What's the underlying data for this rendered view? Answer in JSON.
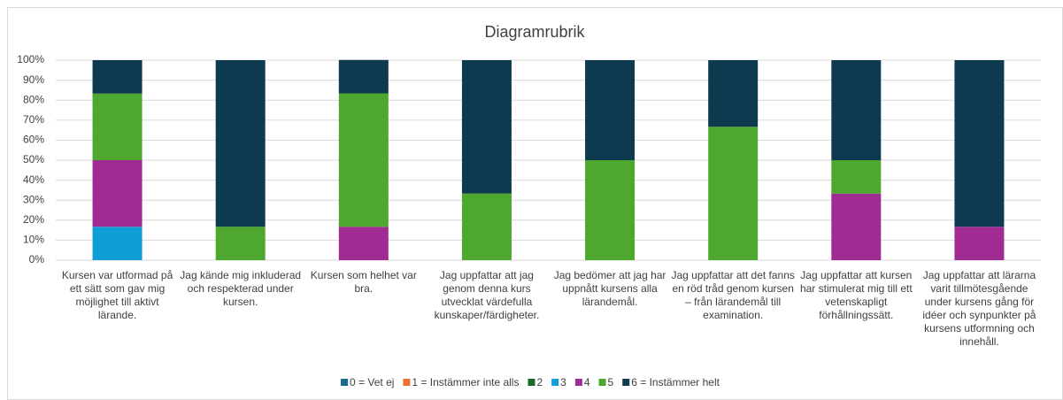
{
  "chart_data": {
    "type": "stacked_bar",
    "title": "Diagramrubrik",
    "categories": [
      "Kursen var utformad på ett sätt som gav mig möjlighet till aktivt lärande.",
      "Jag kände mig inkluderad och respekterad under kursen.",
      "Kursen som helhet var bra.",
      "Jag uppfattar att jag genom denna kurs utvecklat värdefulla kunskaper/färdigheter.",
      "Jag bedömer att jag har uppnått kursens alla lärandemål.",
      "Jag uppfattar att det fanns en röd tråd genom kursen – från lärandemål till examination.",
      "Jag uppfattar att kursen har stimulerat mig till ett vetenskapligt förhållningssätt.",
      "Jag uppfattar att lärarna varit tillmötesgående under kursens gång för idéer och synpunkter på kursens utformning och innehåll."
    ],
    "series": [
      {
        "name": "0 = Vet ej",
        "color": "#196b8f",
        "values": [
          0,
          0,
          0,
          0,
          0,
          0,
          0,
          0
        ]
      },
      {
        "name": "1 = Instämmer inte alls",
        "color": "#e97132",
        "values": [
          0,
          0,
          0,
          0,
          0,
          0,
          0,
          0
        ]
      },
      {
        "name": "2",
        "color": "#196b24",
        "values": [
          0,
          0,
          0,
          0,
          0,
          0,
          0,
          0
        ]
      },
      {
        "name": "3",
        "color": "#0f9ed5",
        "values": [
          16.7,
          0,
          0,
          0,
          0,
          0,
          0,
          0
        ]
      },
      {
        "name": "4",
        "color": "#a02b93",
        "values": [
          33.3,
          0,
          16.7,
          0,
          0,
          0,
          33.3,
          16.7
        ]
      },
      {
        "name": "5",
        "color": "#4ea72e",
        "values": [
          33.3,
          16.7,
          66.7,
          33.3,
          50,
          66.7,
          16.7,
          0
        ]
      },
      {
        "name": "6 = Instämmer helt",
        "color": "#0e3a4f",
        "values": [
          16.7,
          83.3,
          16.7,
          66.7,
          50,
          33.3,
          50,
          83.3
        ]
      }
    ],
    "ylim": [
      0,
      100
    ],
    "yticks": [
      {
        "value": 0,
        "label": "0%"
      },
      {
        "value": 10,
        "label": "10%"
      },
      {
        "value": 20,
        "label": "20%"
      },
      {
        "value": 30,
        "label": "30%"
      },
      {
        "value": 40,
        "label": "40%"
      },
      {
        "value": 50,
        "label": "50%"
      },
      {
        "value": 60,
        "label": "60%"
      },
      {
        "value": 70,
        "label": "70%"
      },
      {
        "value": 80,
        "label": "80%"
      },
      {
        "value": 90,
        "label": "90%"
      },
      {
        "value": 100,
        "label": "100%"
      }
    ],
    "grid": true,
    "legend": "bottom"
  }
}
